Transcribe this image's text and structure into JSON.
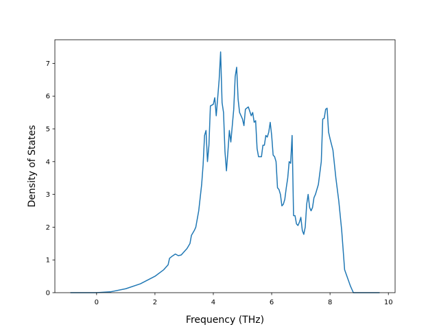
{
  "chart_data": {
    "type": "line",
    "xlabel": "Frequency (THz)",
    "ylabel": "Density of States",
    "color": "#1f77b4",
    "xlim": [
      -1.43,
      10.23
    ],
    "ylim": [
      0,
      7.72
    ],
    "xticks": [
      0,
      2,
      4,
      6,
      8,
      10
    ],
    "yticks": [
      0,
      1,
      2,
      3,
      4,
      5,
      6,
      7
    ],
    "x": [
      -0.9,
      0,
      0.5,
      1,
      1.5,
      2,
      2.3,
      2.45,
      2.5,
      2.6,
      2.7,
      2.8,
      2.9,
      3.0,
      3.1,
      3.2,
      3.25,
      3.35,
      3.4,
      3.5,
      3.6,
      3.65,
      3.7,
      3.75,
      3.8,
      3.85,
      3.9,
      4.0,
      4.05,
      4.1,
      4.2,
      4.25,
      4.3,
      4.35,
      4.4,
      4.45,
      4.5,
      4.55,
      4.6,
      4.7,
      4.75,
      4.8,
      4.85,
      4.9,
      5.0,
      5.05,
      5.1,
      5.2,
      5.3,
      5.35,
      5.4,
      5.45,
      5.5,
      5.55,
      5.65,
      5.7,
      5.75,
      5.8,
      5.85,
      5.9,
      5.95,
      6.0,
      6.05,
      6.1,
      6.15,
      6.2,
      6.25,
      6.3,
      6.35,
      6.4,
      6.45,
      6.5,
      6.55,
      6.6,
      6.65,
      6.7,
      6.75,
      6.8,
      6.85,
      6.9,
      6.95,
      7.0,
      7.05,
      7.1,
      7.15,
      7.2,
      7.25,
      7.3,
      7.35,
      7.4,
      7.45,
      7.5,
      7.6,
      7.7,
      7.75,
      7.8,
      7.85,
      7.9,
      7.95,
      8.0,
      8.1,
      8.2,
      8.3,
      8.4,
      8.5,
      8.6,
      8.7,
      8.8,
      9.7
    ],
    "values": [
      0,
      0,
      0.03,
      0.12,
      0.27,
      0.5,
      0.7,
      0.85,
      1.05,
      1.12,
      1.18,
      1.13,
      1.15,
      1.25,
      1.35,
      1.5,
      1.75,
      1.9,
      2.0,
      2.5,
      3.3,
      3.9,
      4.8,
      4.95,
      4.0,
      4.5,
      5.7,
      5.75,
      5.95,
      5.4,
      6.5,
      7.35,
      5.8,
      5.5,
      4.3,
      3.72,
      4.3,
      4.95,
      4.6,
      5.6,
      6.6,
      6.88,
      5.9,
      5.5,
      5.3,
      5.1,
      5.6,
      5.67,
      5.4,
      5.5,
      5.2,
      5.25,
      4.4,
      4.15,
      4.15,
      4.5,
      4.5,
      4.8,
      4.75,
      4.9,
      5.2,
      4.8,
      4.2,
      4.15,
      4.0,
      3.2,
      3.15,
      3.0,
      2.65,
      2.7,
      2.85,
      3.2,
      3.5,
      4.0,
      3.95,
      4.8,
      2.35,
      2.35,
      2.1,
      2.05,
      2.15,
      2.3,
      1.9,
      1.78,
      2.0,
      2.7,
      3.0,
      2.6,
      2.5,
      2.6,
      2.9,
      3.0,
      3.3,
      4.0,
      5.3,
      5.32,
      5.6,
      5.63,
      4.9,
      4.7,
      4.35,
      3.5,
      2.8,
      1.9,
      0.7,
      0.45,
      0.2,
      0,
      0
    ]
  }
}
